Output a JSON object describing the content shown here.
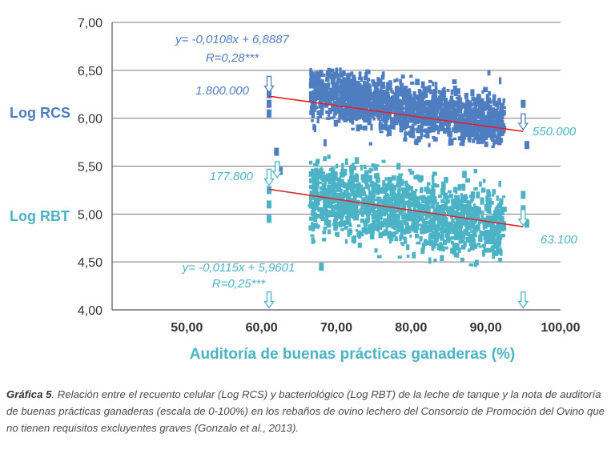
{
  "chart_data": {
    "type": "scatter",
    "xlabel": "Auditoría de buenas prácticas ganaderas (%)",
    "x_ticks": [
      "50,00",
      "60,00",
      "70,00",
      "80,00",
      "90,00",
      "100,00"
    ],
    "x_tick_values": [
      50,
      60,
      70,
      80,
      90,
      100
    ],
    "y_ticks": [
      "4,00",
      "4,50",
      "5,00",
      "5,50",
      "6,00",
      "6,50",
      "7,00"
    ],
    "y_tick_values": [
      4.0,
      4.5,
      5.0,
      5.5,
      6.0,
      6.5,
      7.0
    ],
    "xlim": [
      40,
      100
    ],
    "ylim": [
      4.0,
      7.0
    ],
    "grid": "horizontal",
    "series": [
      {
        "name": "Log RCS",
        "color": "#4f7ec0",
        "x_range": [
          66.5,
          92.5
        ],
        "y_range": [
          5.7,
          6.5
        ],
        "outliers": [
          [
            61,
            6.25
          ],
          [
            61,
            6.15
          ],
          [
            61,
            6.05
          ],
          [
            62,
            5.65
          ],
          [
            95,
            6.15
          ],
          [
            95.5,
            5.72
          ],
          [
            62.5,
            5.45
          ]
        ],
        "trend": {
          "slope": -0.0108,
          "intercept": 6.8887,
          "x": [
            61,
            95
          ]
        },
        "equation": "y= -0,0108x + 6,8887",
        "r": "R=0,28***",
        "start_annotation": "1.800.000",
        "end_annotation": "550.000"
      },
      {
        "name": "Log RBT",
        "color": "#4bb3c5",
        "x_range": [
          66.5,
          92.5
        ],
        "y_range": [
          4.45,
          5.6
        ],
        "outliers": [
          [
            61,
            5.25
          ],
          [
            61,
            5.1
          ],
          [
            61,
            4.95
          ],
          [
            95,
            5.2
          ],
          [
            95,
            5.05
          ],
          [
            95.5,
            4.9
          ],
          [
            68,
            4.45
          ]
        ],
        "trend": {
          "slope": -0.0115,
          "intercept": 5.9601,
          "x": [
            61,
            95
          ]
        },
        "equation": "y= -0,0115x + 5,9601",
        "r": "R=0,25***",
        "start_annotation": "177.800",
        "end_annotation": "63.100"
      }
    ],
    "trend_color": "#e0202a"
  },
  "caption": {
    "label": "Gráfica 5",
    "text": ". Relación entre el recuento celular (Log RCS) y bacteriológico (Log RBT) de la leche de tanque y la nota de auditoría de buenas prácticas ganaderas (escala de 0-100%) en los rebaños de ovino lechero del Consorcio de Promoción del Ovino que no tienen requisitos excluyentes graves (Gonzalo et al., 2013)."
  }
}
